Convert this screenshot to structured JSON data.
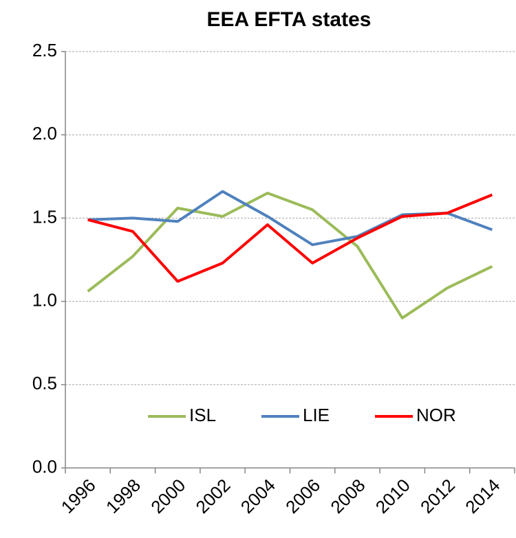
{
  "chart_data": {
    "type": "line",
    "title": "EEA EFTA states",
    "categories": [
      "1996",
      "1998",
      "2000",
      "2002",
      "2004",
      "2006",
      "2008",
      "2010",
      "2012",
      "2014"
    ],
    "series": [
      {
        "name": "ISL",
        "color": "#9bbb59",
        "values": [
          1.06,
          1.27,
          1.56,
          1.51,
          1.65,
          1.55,
          1.33,
          0.9,
          1.08,
          1.21
        ]
      },
      {
        "name": "LIE",
        "color": "#4f81bd",
        "values": [
          1.49,
          1.5,
          1.48,
          1.66,
          1.51,
          1.34,
          1.39,
          1.52,
          1.53,
          1.43
        ]
      },
      {
        "name": "NOR",
        "color": "#ff0000",
        "values": [
          1.49,
          1.42,
          1.12,
          1.23,
          1.46,
          1.23,
          1.38,
          1.51,
          1.53,
          1.64
        ]
      }
    ],
    "ylim": [
      0,
      2.5
    ],
    "yticks": [
      {
        "value": 0,
        "label": "0.0"
      },
      0.5,
      {
        "value": 1,
        "label": "1.0"
      },
      1.5,
      {
        "value": 2,
        "label": "2.0"
      },
      2.5
    ],
    "grid": true,
    "legend": "bottom"
  }
}
